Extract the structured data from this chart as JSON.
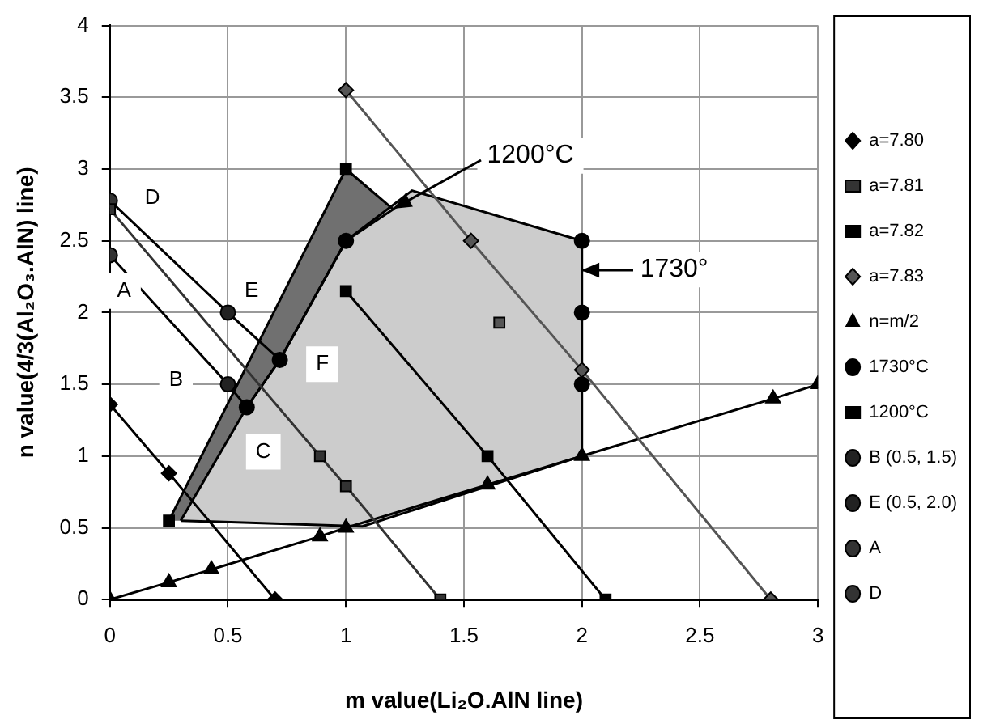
{
  "chart_data": {
    "type": "line",
    "xlabel": "m value(Li₂O.AlN line)",
    "ylabel": "n value(4/3(Al₂O₃.AlN) line)",
    "xlim": [
      0,
      3
    ],
    "xticks": [
      0,
      0.5,
      1,
      1.5,
      2,
      2.5,
      3
    ],
    "ylim": [
      0,
      4
    ],
    "yticks": [
      0,
      0.5,
      1,
      1.5,
      2,
      2.5,
      3,
      3.5,
      4
    ],
    "grid": true,
    "legend": "right",
    "series": [
      {
        "name": "a=7.80",
        "type": "line",
        "marker": "diamond",
        "color": "#000000",
        "x": [
          0,
          0.25,
          0.7
        ],
        "values": [
          1.36,
          0.88,
          0
        ]
      },
      {
        "name": "a=7.81",
        "type": "line",
        "marker": "square",
        "color": "#333333",
        "x": [
          0,
          0.89,
          1,
          1.4
        ],
        "values": [
          2.72,
          1.0,
          0.79,
          0
        ]
      },
      {
        "name": "a=7.82",
        "type": "line",
        "marker": "square",
        "color": "#000000",
        "x": [
          1,
          1.6,
          2.1
        ],
        "values": [
          2.15,
          1.0,
          0
        ]
      },
      {
        "name": "a=7.83",
        "type": "line",
        "marker": "diamond",
        "color": "#555555",
        "x": [
          1,
          1.53,
          2,
          2.8
        ],
        "values": [
          3.55,
          2.5,
          1.6,
          0
        ]
      },
      {
        "name": "n=m/2",
        "type": "line",
        "marker": "triangle",
        "color": "#000000",
        "x": [
          0,
          0.25,
          0.43,
          0.89,
          1,
          1.6,
          2,
          2.81,
          3
        ],
        "values": [
          0,
          0.12,
          0.21,
          0.44,
          0.5,
          0.8,
          1,
          1.4,
          1.5
        ]
      },
      {
        "name": "1730°C",
        "type": "scatter",
        "marker": "circle",
        "color": "#000000",
        "x": [
          0.58,
          0.72,
          1,
          2,
          2,
          2
        ],
        "values": [
          1.34,
          1.67,
          2.5,
          2.5,
          2,
          1.5
        ]
      },
      {
        "name": "1200°C",
        "type": "scatter",
        "marker": "square",
        "color": "#000000",
        "x": [
          0.25,
          1
        ],
        "values": [
          0.55,
          3
        ]
      },
      {
        "name": "B (0.5, 1.5)",
        "type": "scatter",
        "marker": "circle",
        "color": "#222222",
        "x": [
          0.5
        ],
        "values": [
          1.5
        ]
      },
      {
        "name": "E (0.5, 2.0)",
        "type": "scatter",
        "marker": "circle",
        "color": "#222222",
        "x": [
          0.5
        ],
        "values": [
          2.0
        ]
      },
      {
        "name": "A",
        "type": "scatter",
        "marker": "circle",
        "color": "#333333",
        "x": [
          0
        ],
        "values": [
          2.4
        ]
      },
      {
        "name": "D",
        "type": "scatter",
        "marker": "circle",
        "color": "#333333",
        "x": [
          0
        ],
        "values": [
          2.78
        ]
      },
      {
        "type": "line",
        "marker": "none",
        "color": "#000000",
        "x": [
          0,
          0.5,
          0.72
        ],
        "values": [
          2.78,
          2.0,
          1.67
        ]
      },
      {
        "type": "line",
        "marker": "none",
        "color": "#000000",
        "x": [
          0,
          0.5,
          0.58
        ],
        "values": [
          2.4,
          1.5,
          1.34
        ]
      },
      {
        "type": "scatter",
        "marker": "square",
        "color": "#555555",
        "x": [
          1.65
        ],
        "values": [
          1.93
        ]
      },
      {
        "type": "area",
        "marker": "none",
        "color": "#707070",
        "x": [
          0.25,
          1,
          1.2,
          1,
          0.72,
          0.58,
          0.3
        ],
        "values": [
          0.55,
          3,
          2.72,
          2.5,
          1.67,
          1.34,
          0.55
        ]
      },
      {
        "type": "area",
        "marker": "none",
        "color": "#cccccc",
        "x": [
          0.3,
          1.07,
          2,
          2,
          1.28,
          1,
          0.72,
          0.58
        ],
        "values": [
          0.55,
          0.51,
          1,
          2.5,
          2.85,
          2.5,
          1.67,
          1.34
        ]
      }
    ],
    "annotations": [
      {
        "text": "1200°C",
        "x": 1.2,
        "y": 2.72
      },
      {
        "text": "1730°",
        "x": 2,
        "y": 2.3
      },
      {
        "text": "A",
        "x": 0.06,
        "y": 2.15
      },
      {
        "text": "D",
        "x": 0.18,
        "y": 2.8
      },
      {
        "text": "E",
        "x": 0.6,
        "y": 2.15
      },
      {
        "text": "B",
        "x": 0.28,
        "y": 1.53
      },
      {
        "text": "C",
        "x": 0.65,
        "y": 1.03
      },
      {
        "text": "F",
        "x": 0.9,
        "y": 1.64
      }
    ]
  }
}
